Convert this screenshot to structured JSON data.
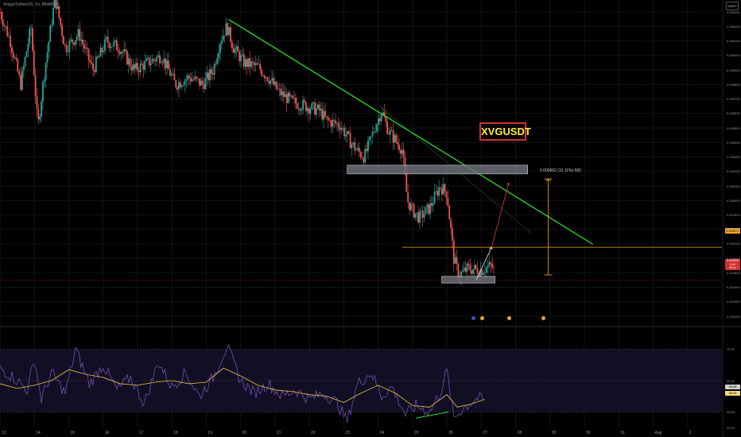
{
  "legend": "Vinigo/Tether/US, 1h, BINANCE",
  "currency": "USDT",
  "symbol_badge": "XVGUSDT",
  "measure_label": "0.000662 (15.11%) 682",
  "hline_label": "0.004677",
  "last_price_label": [
    "0.004449",
    "0.00",
    "58:04"
  ],
  "rsi_labels": [
    "48.88",
    "38.44"
  ],
  "colors": {
    "up": "#26a69a",
    "down": "#ef5350",
    "trend": "#28e028",
    "hline": "#f5a623",
    "rsi": "#7e57c2",
    "rsi_ma": "#e6c34a",
    "target": "#e53935",
    "path": "#e0e0e0"
  },
  "chart_data": [
    {
      "type": "candlestick",
      "title": "XVGUSDT",
      "y_ticks": [
        "0.006300",
        "0.006200",
        "0.006100",
        "0.006000",
        "0.005900",
        "0.005800",
        "0.005700",
        "0.005600",
        "0.005500",
        "0.005400",
        "0.005300",
        "0.005200",
        "0.005100",
        "0.005000",
        "0.004900",
        "0.004800",
        "0.004700",
        "0.004600",
        "0.004500",
        "0.004400",
        "0.004300",
        "0.004200"
      ],
      "ylim": [
        0.004146,
        0.006383
      ],
      "x_ticks": [
        "13",
        "14",
        "15",
        "16",
        "17",
        "18",
        "19",
        "20",
        "21",
        "22",
        "23",
        "24",
        "25",
        "26",
        "27",
        "28",
        "29",
        "30",
        "31",
        "Aug",
        "2"
      ],
      "xlim": [
        0,
        21
      ],
      "series": [
        {
          "kind": "price_path",
          "points": [
            [
              0,
              0.0063
            ],
            [
              0.3,
              0.0061
            ],
            [
              0.6,
              0.0058
            ],
            [
              0.9,
              0.0062
            ],
            [
              1.1,
              0.0055
            ],
            [
              1.3,
              0.0059
            ],
            [
              1.6,
              0.0064
            ],
            [
              1.9,
              0.00605
            ],
            [
              2.3,
              0.00615
            ],
            [
              2.7,
              0.0059
            ],
            [
              3.1,
              0.0061
            ],
            [
              3.5,
              0.00605
            ],
            [
              3.9,
              0.0059
            ],
            [
              4.3,
              0.00595
            ],
            [
              4.7,
              0.006
            ],
            [
              5.1,
              0.0058
            ],
            [
              5.5,
              0.00585
            ],
            [
              5.9,
              0.0058
            ],
            [
              6.2,
              0.0059
            ],
            [
              6.4,
              0.0061
            ],
            [
              6.6,
              0.0062
            ],
            [
              6.8,
              0.00605
            ],
            [
              7.1,
              0.00595
            ],
            [
              7.5,
              0.00592
            ],
            [
              7.8,
              0.00585
            ],
            [
              8.1,
              0.00575
            ],
            [
              8.5,
              0.00568
            ],
            [
              8.9,
              0.00565
            ],
            [
              9.3,
              0.00562
            ],
            [
              9.5,
              0.00555
            ],
            [
              9.9,
              0.00552
            ],
            [
              10.2,
              0.0054
            ],
            [
              10.4,
              0.00534
            ],
            [
              10.6,
              0.0053
            ],
            [
              10.9,
              0.0055
            ],
            [
              11.1,
              0.00562
            ],
            [
              11.3,
              0.00548
            ],
            [
              11.7,
              0.00535
            ],
            [
              11.85,
              0.005
            ],
            [
              12.0,
              0.00493
            ],
            [
              12.2,
              0.00488
            ],
            [
              12.5,
              0.00495
            ],
            [
              12.8,
              0.0051
            ],
            [
              13.0,
              0.00505
            ],
            [
              13.2,
              0.0046
            ],
            [
              13.35,
              0.00448
            ],
            [
              13.6,
              0.00453
            ],
            [
              14.0,
              0.00452
            ],
            [
              14.3,
              0.00455
            ],
            [
              14.4,
              0.0045
            ]
          ]
        },
        {
          "kind": "trendline",
          "points": [
            [
              6.65,
              0.006249
            ],
            [
              17.25,
              0.004697
            ]
          ]
        },
        {
          "kind": "dotted_trendline",
          "points": [
            [
              11.05,
              0.00565
            ],
            [
              15.45,
              0.004775
            ]
          ]
        },
        {
          "kind": "horizontal_line",
          "value": 0.004677
        },
        {
          "kind": "zone",
          "x": [
            10.1,
            15.35
          ],
          "y": [
            0.005243,
            0.005183
          ]
        },
        {
          "kind": "zone",
          "x": [
            12.85,
            14.4
          ],
          "y": [
            0.004476,
            0.00443
          ]
        },
        {
          "kind": "projection",
          "points": [
            [
              13.85,
              0.00445
            ],
            [
              14.3,
              0.004677
            ],
            [
              14.8,
              0.00512
            ]
          ]
        },
        {
          "kind": "measure",
          "x": 15.95,
          "y": [
            0.005148,
            0.004486
          ]
        }
      ]
    },
    {
      "type": "line",
      "title": "RSI",
      "y_ticks": [
        "70.00",
        "50.00",
        "30.00",
        "20.00"
      ],
      "ylim": [
        20,
        80
      ],
      "bands": [
        30,
        70
      ],
      "mid": 50,
      "series": [
        {
          "name": "",
          "points": [
            [
              0,
              58
            ],
            [
              0.4,
              52
            ],
            [
              0.8,
              44
            ],
            [
              1.0,
              64
            ],
            [
              1.2,
              38
            ],
            [
              1.5,
              55
            ],
            [
              1.9,
              42
            ],
            [
              2.2,
              70
            ],
            [
              2.6,
              48
            ],
            [
              3.0,
              60
            ],
            [
              3.4,
              44
            ],
            [
              3.8,
              52
            ],
            [
              4.2,
              35
            ],
            [
              4.6,
              62
            ],
            [
              5.0,
              46
            ],
            [
              5.4,
              55
            ],
            [
              5.8,
              40
            ],
            [
              6.2,
              52
            ],
            [
              6.6,
              72
            ],
            [
              7.0,
              50
            ],
            [
              7.4,
              42
            ],
            [
              7.8,
              48
            ],
            [
              8.2,
              40
            ],
            [
              8.6,
              44
            ],
            [
              9.0,
              38
            ],
            [
              9.4,
              42
            ],
            [
              9.8,
              36
            ],
            [
              10.1,
              24
            ],
            [
              10.4,
              48
            ],
            [
              10.8,
              55
            ],
            [
              11.1,
              40
            ],
            [
              11.4,
              46
            ],
            [
              11.8,
              28
            ],
            [
              12.1,
              34
            ],
            [
              12.5,
              30
            ],
            [
              12.8,
              42
            ],
            [
              13.0,
              56
            ],
            [
              13.2,
              26
            ],
            [
              13.5,
              33
            ],
            [
              13.9,
              39
            ],
            [
              14.1,
              37
            ]
          ]
        },
        {
          "name": "",
          "points": [
            [
              0,
              48
            ],
            [
              0.5,
              45
            ],
            [
              1.0,
              47
            ],
            [
              1.5,
              50
            ],
            [
              2.0,
              57
            ],
            [
              2.5,
              54
            ],
            [
              3.0,
              52
            ],
            [
              3.5,
              48
            ],
            [
              4.0,
              47
            ],
            [
              4.5,
              49
            ],
            [
              5.0,
              50
            ],
            [
              5.5,
              48
            ],
            [
              6.0,
              49
            ],
            [
              6.5,
              58
            ],
            [
              7.0,
              53
            ],
            [
              7.5,
              47
            ],
            [
              8.0,
              44
            ],
            [
              8.5,
              43
            ],
            [
              9.0,
              41
            ],
            [
              9.5,
              40
            ],
            [
              10.0,
              36
            ],
            [
              10.5,
              42
            ],
            [
              11.0,
              47
            ],
            [
              11.5,
              42
            ],
            [
              12.0,
              34
            ],
            [
              12.5,
              33
            ],
            [
              13.0,
              41
            ],
            [
              13.3,
              33
            ],
            [
              13.7,
              35
            ],
            [
              14.1,
              38
            ]
          ]
        },
        {
          "kind": "divergence",
          "points": [
            [
              12.1,
              26
            ],
            [
              13.05,
              30
            ]
          ]
        }
      ]
    }
  ]
}
